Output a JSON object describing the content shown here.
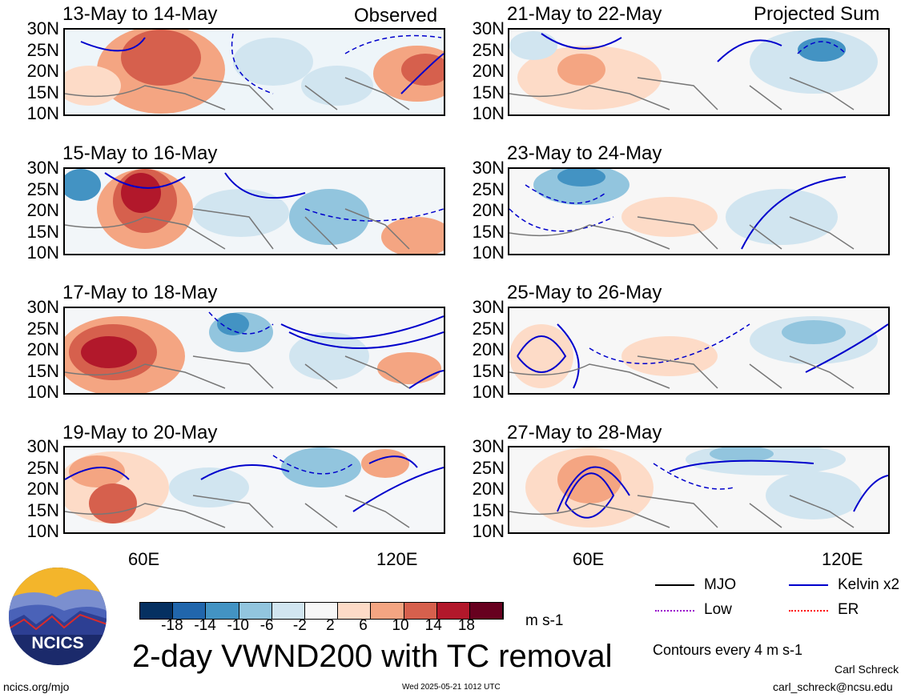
{
  "header": {
    "observed_label": "Observed",
    "projected_label": "Projected Sum"
  },
  "panels_left": [
    {
      "title": "13-May to 14-May"
    },
    {
      "title": "15-May to 16-May"
    },
    {
      "title": "17-May to 18-May"
    },
    {
      "title": "19-May to 20-May"
    }
  ],
  "panels_right": [
    {
      "title": "21-May to 22-May"
    },
    {
      "title": "23-May to 24-May"
    },
    {
      "title": "25-May to 26-May"
    },
    {
      "title": "27-May to 28-May"
    }
  ],
  "lat_ticks": [
    "30N",
    "25N",
    "20N",
    "15N",
    "10N"
  ],
  "lon_ticks": [
    "60E",
    "120E"
  ],
  "colorbar": {
    "colors": [
      "#053061",
      "#2166ac",
      "#4393c3",
      "#92c5de",
      "#d1e5f0",
      "#f7f7f7",
      "#fddbc7",
      "#f4a582",
      "#d6604d",
      "#b2182b",
      "#67001f"
    ],
    "labels": [
      "-18",
      "-14",
      "-10",
      "-6",
      "-2",
      "2",
      "6",
      "10",
      "14",
      "18"
    ],
    "units": "m s-1"
  },
  "legend": {
    "items": [
      {
        "label": "MJO",
        "color": "#000000"
      },
      {
        "label": "Kelvin x2",
        "color": "#0000cc"
      },
      {
        "label": "Low",
        "color": "#9900cc"
      },
      {
        "label": "ER",
        "color": "#ff0000"
      }
    ],
    "contour_note": "Contours every 4 m s-1"
  },
  "logo_text": "NCICS",
  "title": "2-day VWND200 with TC removal",
  "footer": {
    "url": "ncics.org/mjo",
    "timestamp": "Wed 2025-05-21 1012 UTC",
    "author": "Carl Schreck",
    "email": "carl_schreck@ncsu.edu"
  }
}
